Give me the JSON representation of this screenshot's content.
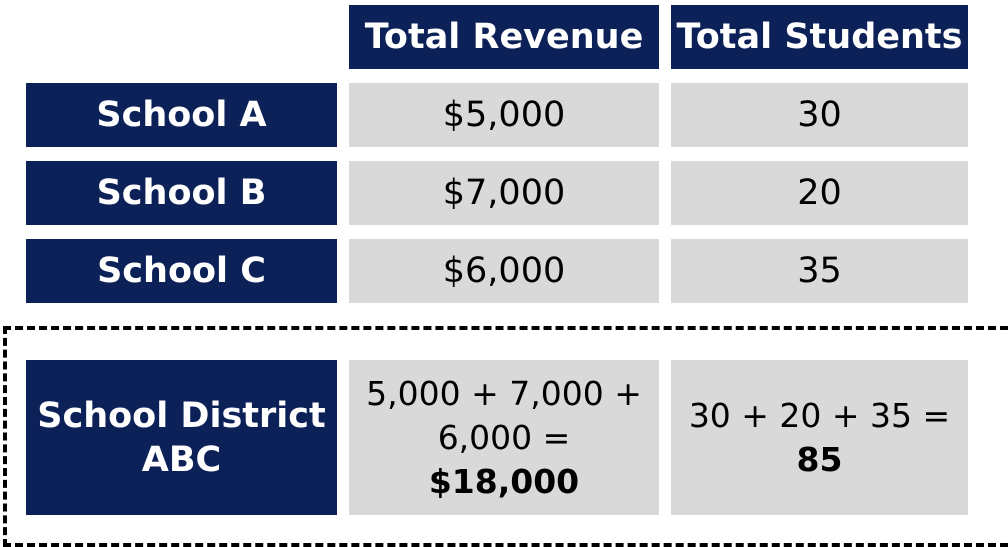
{
  "table": {
    "headers": [
      "Total Revenue",
      "Total Students"
    ],
    "rows": [
      {
        "label": "School A",
        "revenue": "$5,000",
        "students": "30"
      },
      {
        "label": "School B",
        "revenue": "$7,000",
        "students": "20"
      },
      {
        "label": "School C",
        "revenue": "$6,000",
        "students": "35"
      }
    ],
    "summary": {
      "label_line1": "School District",
      "label_line2": "ABC",
      "revenue_line1": "5,000 + 7,000 +",
      "revenue_line2": "6,000 =",
      "revenue_total": "$18,000",
      "students_line1": "30 + 20 + 35 =",
      "students_total": "85"
    }
  },
  "colors": {
    "header_bg": "#0d2159",
    "cell_bg": "#d9d9d9"
  }
}
